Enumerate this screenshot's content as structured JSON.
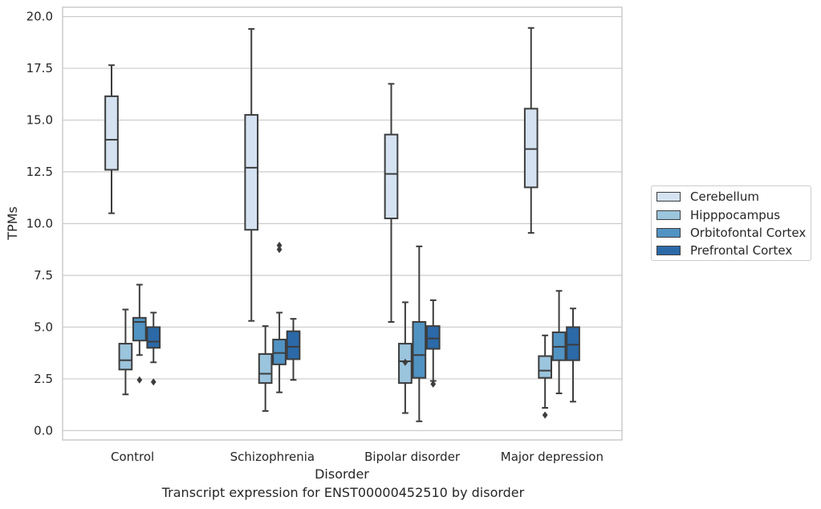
{
  "chart_data": {
    "type": "box",
    "title": "",
    "caption": "Transcript expression for ENST00000452510 by disorder",
    "xlabel": "Disorder",
    "ylabel": "TPMs",
    "ylim": [
      -0.45,
      20.45
    ],
    "yticks": [
      "0.0",
      "2.5",
      "5.0",
      "7.5",
      "10.0",
      "12.5",
      "15.0",
      "17.5",
      "20.0"
    ],
    "ytick_values": [
      0,
      2.5,
      5,
      7.5,
      10,
      12.5,
      15,
      17.5,
      20
    ],
    "categories": [
      "Control",
      "Schizophrenia",
      "Bipolar disorder",
      "Major depression"
    ],
    "grid": "horizontal",
    "legend_position": "right",
    "series": [
      {
        "name": "Cerebellum",
        "color": "#d4e2f1",
        "boxes": [
          {
            "whislo": 10.5,
            "q1": 12.6,
            "med": 14.05,
            "q3": 16.15,
            "whishi": 17.65,
            "fliers": []
          },
          {
            "whislo": 5.3,
            "q1": 9.7,
            "med": 12.7,
            "q3": 15.25,
            "whishi": 19.4,
            "fliers": []
          },
          {
            "whislo": 5.25,
            "q1": 10.25,
            "med": 12.4,
            "q3": 14.3,
            "whishi": 16.75,
            "fliers": []
          },
          {
            "whislo": 9.55,
            "q1": 11.75,
            "med": 13.6,
            "q3": 15.55,
            "whishi": 19.45,
            "fliers": []
          }
        ]
      },
      {
        "name": "Hipppocampus",
        "color": "#9bc4dd",
        "boxes": [
          {
            "whislo": 1.75,
            "q1": 2.95,
            "med": 3.4,
            "q3": 4.2,
            "whishi": 5.85,
            "fliers": []
          },
          {
            "whislo": 0.95,
            "q1": 2.3,
            "med": 2.75,
            "q3": 3.7,
            "whishi": 5.05,
            "fliers": []
          },
          {
            "whislo": 0.85,
            "q1": 2.3,
            "med": 3.35,
            "q3": 4.2,
            "whishi": 6.2,
            "fliers": [
              3.3
            ]
          },
          {
            "whislo": 1.1,
            "q1": 2.55,
            "med": 2.9,
            "q3": 3.6,
            "whishi": 4.6,
            "fliers": [
              0.75
            ]
          }
        ]
      },
      {
        "name": "Orbitofontal Cortex",
        "color": "#5193c3",
        "boxes": [
          {
            "whislo": 3.65,
            "q1": 4.35,
            "med": 5.25,
            "q3": 5.45,
            "whishi": 7.05,
            "fliers": [
              2.45
            ]
          },
          {
            "whislo": 1.85,
            "q1": 3.2,
            "med": 3.75,
            "q3": 4.4,
            "whishi": 5.7,
            "fliers": [
              8.75,
              8.95
            ]
          },
          {
            "whislo": 0.45,
            "q1": 2.55,
            "med": 3.65,
            "q3": 5.25,
            "whishi": 8.9,
            "fliers": []
          },
          {
            "whislo": 1.8,
            "q1": 3.4,
            "med": 4.05,
            "q3": 4.75,
            "whishi": 6.75,
            "fliers": []
          }
        ]
      },
      {
        "name": "Prefrontal Cortex",
        "color": "#2b69a8",
        "boxes": [
          {
            "whislo": 3.3,
            "q1": 4.0,
            "med": 4.3,
            "q3": 5.0,
            "whishi": 5.7,
            "fliers": [
              2.35
            ]
          },
          {
            "whislo": 2.45,
            "q1": 3.45,
            "med": 4.05,
            "q3": 4.8,
            "whishi": 5.4,
            "fliers": []
          },
          {
            "whislo": 2.4,
            "q1": 3.95,
            "med": 4.45,
            "q3": 5.05,
            "whishi": 6.3,
            "fliers": [
              2.25
            ]
          },
          {
            "whislo": 1.4,
            "q1": 3.4,
            "med": 4.15,
            "q3": 5.0,
            "whishi": 5.9,
            "fliers": []
          }
        ]
      }
    ]
  }
}
